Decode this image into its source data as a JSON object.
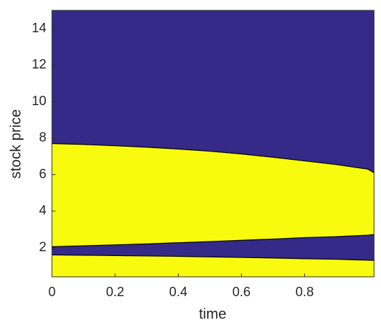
{
  "chart_data": {
    "type": "region",
    "x_label": "time",
    "y_label": "stock price",
    "background": "#352a87",
    "x": [
      0,
      0.1,
      0.2,
      0.3,
      0.4,
      0.5,
      0.6,
      0.7,
      0.8,
      0.9,
      1.0,
      1.02
    ],
    "series": [
      {
        "color": "#f9fb0e",
        "values": [
          1.6,
          1.58,
          1.56,
          1.54,
          1.52,
          1.49,
          1.46,
          1.43,
          1.39,
          1.36,
          1.31,
          1.3
        ]
      },
      {
        "color": "#f9fb0e",
        "values": [
          7.7,
          7.65,
          7.58,
          7.5,
          7.4,
          7.28,
          7.13,
          6.95,
          6.75,
          6.55,
          6.3,
          6.1
        ],
        "base": [
          2.05,
          2.1,
          2.15,
          2.2,
          2.27,
          2.33,
          2.4,
          2.47,
          2.55,
          2.6,
          2.68,
          2.72
        ]
      }
    ],
    "xlim": [
      0,
      1.02
    ],
    "xticks": [
      0,
      0.2,
      0.4,
      0.6,
      0.8
    ],
    "ylim": [
      0.4,
      15
    ],
    "yticks": [
      2,
      4,
      6,
      8,
      10,
      12,
      14
    ]
  }
}
